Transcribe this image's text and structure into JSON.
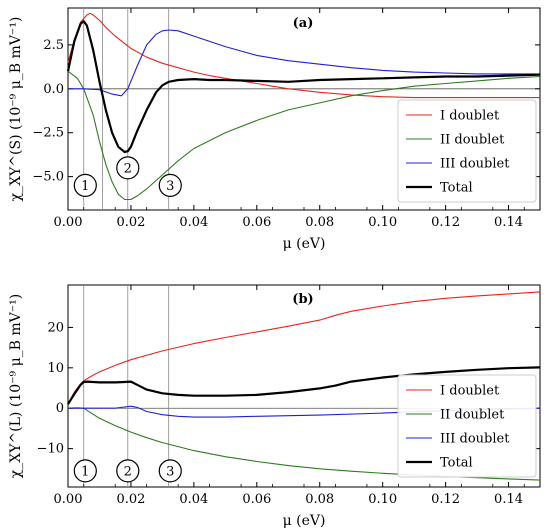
{
  "chart_data": [
    {
      "type": "line",
      "panel_label": "(a)",
      "xlabel": "μ (eV)",
      "ylabel": "χ_XY^(S) (10⁻⁹ μ_B mV⁻¹)",
      "xlim": [
        0.0,
        0.15
      ],
      "ylim": [
        -6.9,
        4.6
      ],
      "x_ticks": [
        "0.00",
        "0.02",
        "0.04",
        "0.06",
        "0.08",
        "0.10",
        "0.12",
        "0.14"
      ],
      "y_ticks": [
        "2.5",
        "0.0",
        "−2.5",
        "−5.0"
      ],
      "y_tick_values": [
        2.5,
        0.0,
        -2.5,
        -5.0
      ],
      "legend_position": "lower-right",
      "vlines": [
        0.005,
        0.011,
        0.019,
        0.032
      ],
      "markers": [
        {
          "label": "1",
          "x": 0.0055,
          "y": -5.5
        },
        {
          "label": "2",
          "x": 0.019,
          "y": -4.5
        },
        {
          "label": "3",
          "x": 0.0325,
          "y": -5.5
        }
      ],
      "series": [
        {
          "name": "I doublet",
          "color": "#e8261e",
          "x": [
            0.0,
            0.002,
            0.004,
            0.006,
            0.007,
            0.008,
            0.01,
            0.012,
            0.015,
            0.02,
            0.025,
            0.03,
            0.035,
            0.04,
            0.045,
            0.05,
            0.055,
            0.06,
            0.065,
            0.07,
            0.08,
            0.09,
            0.1,
            0.11,
            0.12,
            0.13,
            0.14,
            0.15
          ],
          "y": [
            1.5,
            2.8,
            3.8,
            4.2,
            4.3,
            4.2,
            3.9,
            3.5,
            3.0,
            2.3,
            1.8,
            1.45,
            1.2,
            0.95,
            0.75,
            0.6,
            0.45,
            0.3,
            0.15,
            0.0,
            -0.2,
            -0.35,
            -0.45,
            -0.5,
            -0.5,
            -0.5,
            -0.5,
            -0.5
          ]
        },
        {
          "name": "II doublet",
          "color": "#2e7d1e",
          "x": [
            0.0,
            0.003,
            0.005,
            0.008,
            0.01,
            0.012,
            0.014,
            0.016,
            0.018,
            0.02,
            0.022,
            0.025,
            0.03,
            0.035,
            0.04,
            0.05,
            0.06,
            0.07,
            0.08,
            0.09,
            0.1,
            0.11,
            0.12,
            0.13,
            0.14,
            0.15
          ],
          "y": [
            1.0,
            0.6,
            0.0,
            -1.5,
            -3.0,
            -4.3,
            -5.3,
            -6.0,
            -6.3,
            -6.3,
            -6.1,
            -5.7,
            -4.9,
            -4.1,
            -3.4,
            -2.5,
            -1.8,
            -1.2,
            -0.8,
            -0.4,
            -0.1,
            0.15,
            0.3,
            0.45,
            0.6,
            0.7
          ]
        },
        {
          "name": "III doublet",
          "color": "#1f1fd8",
          "x": [
            0.0,
            0.005,
            0.01,
            0.014,
            0.017,
            0.019,
            0.022,
            0.025,
            0.028,
            0.03,
            0.032,
            0.035,
            0.04,
            0.05,
            0.06,
            0.07,
            0.08,
            0.09,
            0.1,
            0.11,
            0.12,
            0.13,
            0.14,
            0.15
          ],
          "y": [
            0.0,
            0.0,
            -0.05,
            -0.3,
            -0.4,
            0.0,
            1.3,
            2.5,
            3.1,
            3.3,
            3.35,
            3.3,
            3.0,
            2.4,
            1.9,
            1.6,
            1.4,
            1.2,
            1.05,
            0.95,
            0.9,
            0.85,
            0.85,
            0.85
          ]
        },
        {
          "name": "Total",
          "color": "#000000",
          "x": [
            0.0,
            0.002,
            0.004,
            0.005,
            0.006,
            0.008,
            0.01,
            0.012,
            0.014,
            0.016,
            0.018,
            0.019,
            0.02,
            0.022,
            0.025,
            0.028,
            0.03,
            0.032,
            0.035,
            0.04,
            0.045,
            0.05,
            0.06,
            0.07,
            0.08,
            0.09,
            0.1,
            0.11,
            0.12,
            0.13,
            0.14,
            0.15
          ],
          "y": [
            1.0,
            2.7,
            3.7,
            3.85,
            3.6,
            2.2,
            0.4,
            -1.2,
            -2.5,
            -3.3,
            -3.6,
            -3.55,
            -3.3,
            -2.4,
            -1.2,
            -0.2,
            0.2,
            0.4,
            0.5,
            0.55,
            0.5,
            0.5,
            0.45,
            0.4,
            0.5,
            0.55,
            0.6,
            0.65,
            0.7,
            0.7,
            0.75,
            0.8
          ]
        }
      ]
    },
    {
      "type": "line",
      "panel_label": "(b)",
      "xlabel": "μ (eV)",
      "ylabel": "χ_XY^(L) (10⁻⁹ μ_B mV⁻¹)",
      "xlim": [
        0.0,
        0.15
      ],
      "ylim": [
        -19.5,
        30.5
      ],
      "x_ticks": [
        "0.00",
        "0.02",
        "0.04",
        "0.06",
        "0.08",
        "0.10",
        "0.12",
        "0.14"
      ],
      "y_ticks": [
        "20",
        "10",
        "0",
        "−10"
      ],
      "y_tick_values": [
        20,
        10,
        0,
        -10
      ],
      "legend_position": "lower-right",
      "vlines": [
        0.005,
        0.019,
        0.032
      ],
      "markers": [
        {
          "label": "1",
          "x": 0.0055,
          "y": -15.5
        },
        {
          "label": "2",
          "x": 0.019,
          "y": -15.5
        },
        {
          "label": "3",
          "x": 0.0325,
          "y": -15.5
        }
      ],
      "series": [
        {
          "name": "I doublet",
          "color": "#e8261e",
          "x": [
            0.0,
            0.002,
            0.004,
            0.005,
            0.008,
            0.01,
            0.015,
            0.02,
            0.03,
            0.04,
            0.05,
            0.06,
            0.07,
            0.08,
            0.085,
            0.09,
            0.1,
            0.11,
            0.12,
            0.13,
            0.14,
            0.15
          ],
          "y": [
            1.0,
            4.0,
            6.0,
            6.8,
            8.2,
            9.0,
            10.6,
            12.0,
            14.2,
            16.0,
            17.5,
            18.9,
            20.3,
            21.8,
            23.0,
            24.0,
            25.3,
            26.4,
            27.2,
            27.8,
            28.3,
            28.8
          ]
        },
        {
          "name": "II doublet",
          "color": "#2e7d1e",
          "x": [
            0.0,
            0.003,
            0.005,
            0.007,
            0.01,
            0.015,
            0.02,
            0.025,
            0.03,
            0.04,
            0.05,
            0.06,
            0.07,
            0.08,
            0.09,
            0.1,
            0.11,
            0.12,
            0.13,
            0.14,
            0.15
          ],
          "y": [
            0.0,
            0.1,
            0.0,
            -1.0,
            -2.5,
            -4.3,
            -5.9,
            -7.3,
            -8.5,
            -10.5,
            -12.0,
            -13.2,
            -14.2,
            -15.0,
            -15.6,
            -16.1,
            -16.5,
            -16.9,
            -17.2,
            -17.5,
            -17.8
          ]
        },
        {
          "name": "III doublet",
          "color": "#1f1fd8",
          "x": [
            0.0,
            0.005,
            0.01,
            0.015,
            0.018,
            0.02,
            0.022,
            0.025,
            0.03,
            0.035,
            0.04,
            0.05,
            0.06,
            0.08,
            0.1,
            0.12,
            0.14,
            0.15
          ],
          "y": [
            0.0,
            0.0,
            0.0,
            0.0,
            0.3,
            0.5,
            0.2,
            -0.8,
            -1.6,
            -2.0,
            -2.2,
            -2.2,
            -2.0,
            -1.7,
            -1.2,
            -0.6,
            -0.2,
            0.0
          ]
        },
        {
          "name": "Total",
          "color": "#000000",
          "x": [
            0.0,
            0.002,
            0.004,
            0.005,
            0.006,
            0.008,
            0.01,
            0.015,
            0.018,
            0.02,
            0.022,
            0.025,
            0.03,
            0.035,
            0.04,
            0.05,
            0.06,
            0.07,
            0.08,
            0.085,
            0.09,
            0.1,
            0.11,
            0.12,
            0.13,
            0.14,
            0.15
          ],
          "y": [
            1.0,
            3.5,
            5.8,
            6.5,
            6.6,
            6.5,
            6.4,
            6.4,
            6.5,
            6.6,
            5.8,
            4.6,
            3.7,
            3.3,
            3.1,
            3.1,
            3.3,
            4.0,
            4.9,
            5.6,
            6.6,
            7.6,
            8.4,
            9.0,
            9.5,
            9.9,
            10.1
          ]
        }
      ]
    }
  ]
}
